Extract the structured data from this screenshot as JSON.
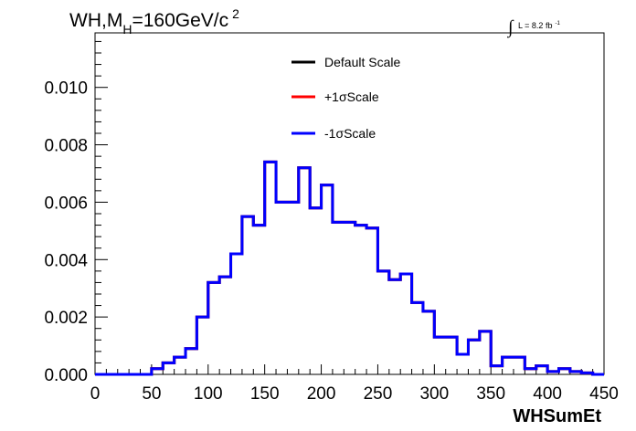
{
  "chart_data": {
    "type": "line",
    "title": {
      "prefix": "WH,M",
      "subscript": "H",
      "value": "=160GeV/c",
      "superscript": "2"
    },
    "luminosity": {
      "integral": "∫",
      "label": "L = 8.2 fb",
      "superscript": "-1"
    },
    "xlabel": "WHSumEt",
    "ylabel": "",
    "xlim": [
      0,
      450
    ],
    "ylim": [
      0,
      0.0119
    ],
    "x_ticks": [
      {
        "value": 0,
        "label": "0"
      },
      {
        "value": 50,
        "label": "50"
      },
      {
        "value": 100,
        "label": "100"
      },
      {
        "value": 150,
        "label": "150"
      },
      {
        "value": 200,
        "label": "200"
      },
      {
        "value": 250,
        "label": "250"
      },
      {
        "value": 300,
        "label": "300"
      },
      {
        "value": 350,
        "label": "350"
      },
      {
        "value": 400,
        "label": "400"
      },
      {
        "value": 450,
        "label": "450"
      }
    ],
    "y_ticks": [
      {
        "value": 0.0,
        "label": "0.000"
      },
      {
        "value": 0.002,
        "label": "0.002"
      },
      {
        "value": 0.004,
        "label": "0.004"
      },
      {
        "value": 0.006,
        "label": "0.006"
      },
      {
        "value": 0.008,
        "label": "0.008"
      },
      {
        "value": 0.01,
        "label": "0.010"
      }
    ],
    "legend": {
      "placement": "top-center",
      "entries": [
        {
          "name": "Default Scale",
          "color": "#000000"
        },
        {
          "name": "+1σScale",
          "color": "#ff0000"
        },
        {
          "name": "-1σScale",
          "color": "#0000ff"
        }
      ]
    },
    "bin_edges": [
      0,
      10,
      20,
      30,
      40,
      50,
      60,
      70,
      80,
      90,
      100,
      110,
      120,
      130,
      140,
      150,
      160,
      170,
      180,
      190,
      200,
      210,
      220,
      230,
      240,
      250,
      260,
      270,
      280,
      290,
      300,
      310,
      320,
      330,
      340,
      350,
      360,
      370,
      380,
      390,
      400,
      410,
      420,
      430,
      440,
      450
    ],
    "series": [
      {
        "name": "Default Scale",
        "color": "#000000",
        "values": [
          0,
          0,
          0,
          0,
          0,
          0.0002,
          0.0004,
          0.0006,
          0.0009,
          0.002,
          0.0032,
          0.0034,
          0.0042,
          0.0055,
          0.0052,
          0.0074,
          0.006,
          0.006,
          0.0072,
          0.0058,
          0.0066,
          0.0053,
          0.0053,
          0.0052,
          0.0051,
          0.0036,
          0.0033,
          0.0035,
          0.0025,
          0.0022,
          0.0013,
          0.0013,
          0.0007,
          0.0012,
          0.0015,
          0.0003,
          0.0006,
          0.0006,
          0.0002,
          0.0003,
          0.0001,
          0.0002,
          0.0001,
          5e-05,
          0
        ]
      },
      {
        "name": "+1σScale",
        "color": "#ff0000",
        "values": [
          0,
          0,
          0,
          0,
          0,
          0.0002,
          0.0004,
          0.0006,
          0.0009,
          0.002,
          0.0032,
          0.0034,
          0.0042,
          0.0055,
          0.0052,
          0.0074,
          0.006,
          0.006,
          0.0072,
          0.0058,
          0.0066,
          0.0053,
          0.0053,
          0.0052,
          0.0051,
          0.0036,
          0.0033,
          0.0035,
          0.0025,
          0.0022,
          0.0013,
          0.0013,
          0.0007,
          0.0012,
          0.0015,
          0.0003,
          0.0006,
          0.0006,
          0.0002,
          0.0003,
          0.0001,
          0.0002,
          0.0001,
          5e-05,
          0
        ]
      },
      {
        "name": "-1σScale",
        "color": "#0000ff",
        "values": [
          0,
          0,
          0,
          0,
          0,
          0.0002,
          0.0004,
          0.0006,
          0.0009,
          0.002,
          0.0032,
          0.0034,
          0.0042,
          0.0055,
          0.0052,
          0.0074,
          0.006,
          0.006,
          0.0072,
          0.0058,
          0.0066,
          0.0053,
          0.0053,
          0.0052,
          0.0051,
          0.0036,
          0.0033,
          0.0035,
          0.0025,
          0.0022,
          0.0013,
          0.0013,
          0.0007,
          0.0012,
          0.0015,
          0.0003,
          0.0006,
          0.0006,
          0.0002,
          0.0003,
          0.0001,
          0.0002,
          0.0001,
          5e-05,
          0
        ]
      }
    ]
  }
}
